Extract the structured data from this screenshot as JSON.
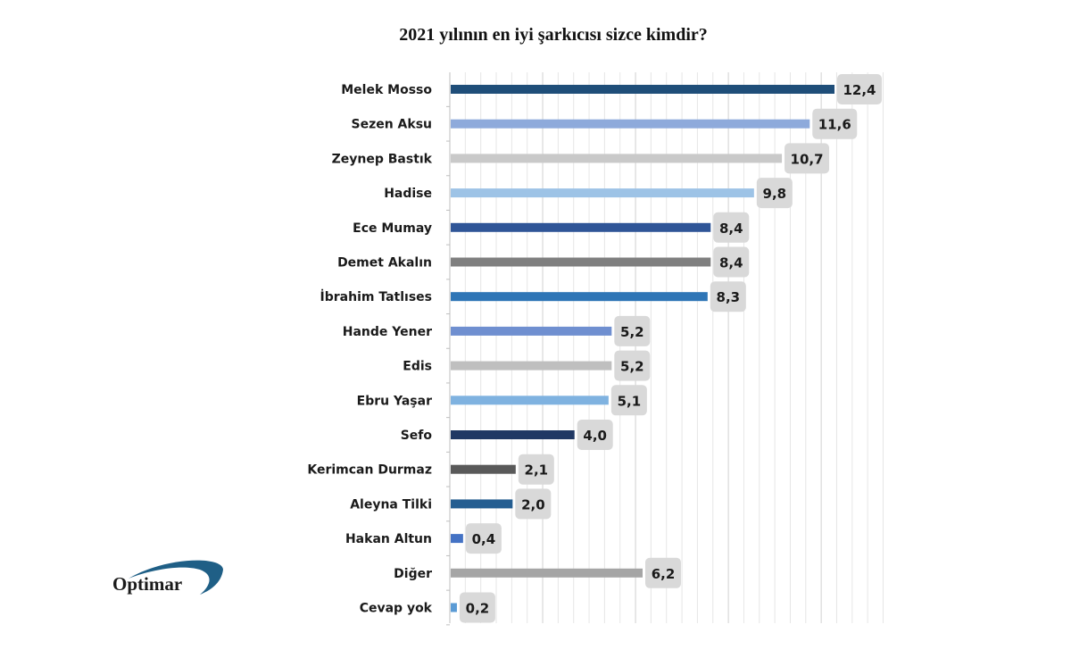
{
  "chart_data": {
    "type": "bar",
    "orientation": "horizontal",
    "title": "2021 yılının en iyi şarkıcısı sizce kimdir?",
    "categories": [
      "Melek Mosso",
      "Sezen Aksu",
      "Zeynep Bastık",
      "Hadise",
      "Ece Mumay",
      "Demet Akalın",
      "İbrahim Tatlıses",
      "Hande Yener",
      "Edis",
      "Ebru Yaşar",
      "Sefo",
      "Kerimcan Durmaz",
      "Aleyna Tilki",
      "Hakan Altun",
      "Diğer",
      "Cevap yok"
    ],
    "values": [
      12.4,
      11.6,
      10.7,
      9.8,
      8.4,
      8.4,
      8.3,
      5.2,
      5.2,
      5.1,
      4.0,
      2.1,
      2.0,
      0.4,
      6.2,
      0.2
    ],
    "value_labels": [
      "12,4",
      "11,6",
      "10,7",
      "9,8",
      "8,4",
      "8,4",
      "8,3",
      "5,2",
      "5,2",
      "5,1",
      "4,0",
      "2,1",
      "2,0",
      "0,4",
      "6,2",
      "0,2"
    ],
    "colors": [
      "#1f4e79",
      "#8eaadb",
      "#c9c9c9",
      "#9dc3e6",
      "#2f5597",
      "#7f7f7f",
      "#2e75b6",
      "#6f8fd0",
      "#bfbfbf",
      "#7fb2e0",
      "#203864",
      "#595959",
      "#255e91",
      "#4472c4",
      "#a5a5a5",
      "#5b9bd5"
    ],
    "xlim": [
      0,
      14
    ],
    "grid": true,
    "xlabel": "",
    "ylabel": ""
  },
  "logo": {
    "text": "Optimar",
    "swoosh_color": "#1f5f86"
  }
}
